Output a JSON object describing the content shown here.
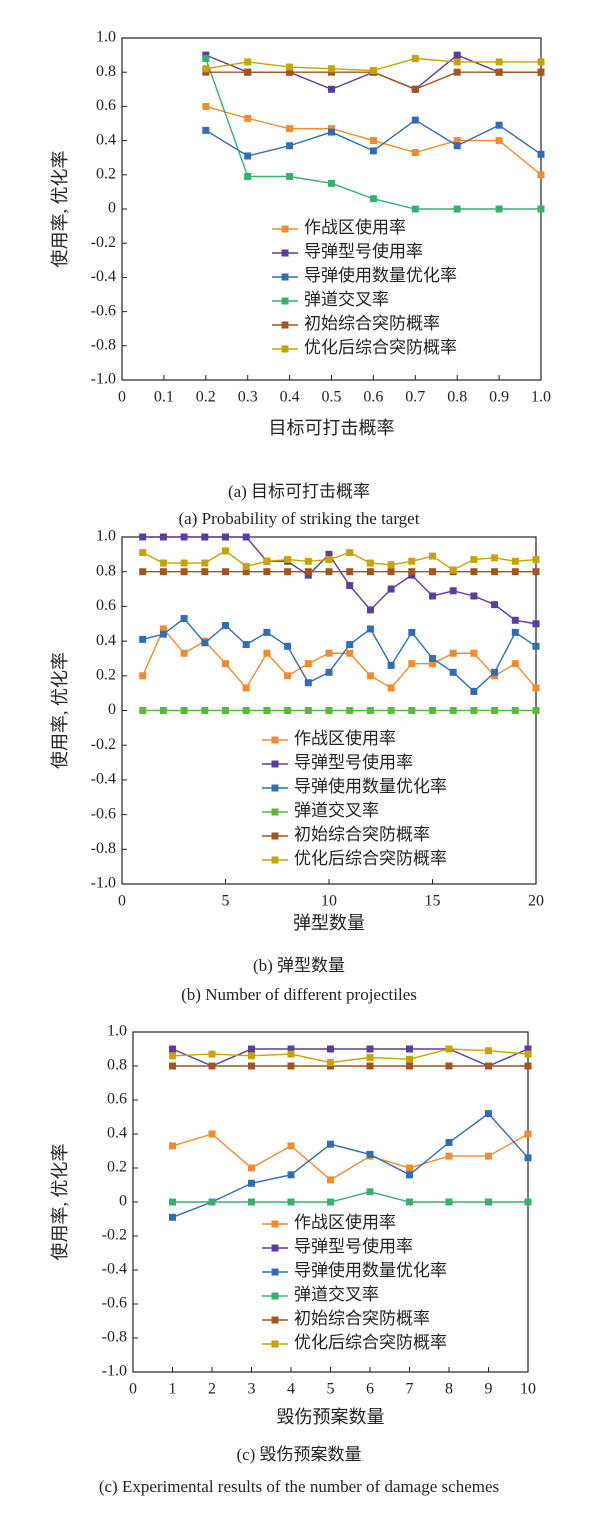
{
  "chart_data": [
    {
      "type": "line",
      "xlabel": "目标可打击概率",
      "ylabel": "使用率, 优化率",
      "caption": "(a) 目标可打击概率",
      "caption_en": "(a) Probability of striking the target",
      "x": [
        0.2,
        0.3,
        0.4,
        0.5,
        0.6,
        0.7,
        0.8,
        0.9,
        1.0
      ],
      "xlim": [
        0,
        1.0
      ],
      "xticks": [
        0,
        0.1,
        0.2,
        0.3,
        0.4,
        0.5,
        0.6,
        0.7,
        0.8,
        0.9,
        {
          "value": 1,
          "label": "1.0"
        }
      ],
      "ylim": [
        -1,
        1
      ],
      "yticks": [
        {
          "value": 1,
          "label": "1.0"
        },
        0.8,
        0.6,
        0.4,
        0.2,
        0,
        -0.2,
        -0.4,
        -0.6,
        -0.8,
        {
          "value": -1,
          "label": "-1.0"
        }
      ],
      "series": [
        {
          "name": "作战区使用率",
          "color": "#f28b2c",
          "values": [
            0.6,
            0.53,
            0.47,
            0.47,
            0.4,
            0.33,
            0.4,
            0.4,
            0.2
          ]
        },
        {
          "name": "导弹型号使用率",
          "color": "#5a3d9e",
          "values": [
            0.9,
            0.8,
            0.8,
            0.7,
            0.8,
            0.7,
            0.9,
            0.8,
            0.8
          ]
        },
        {
          "name": "导弹使用数量优化率",
          "color": "#2f6db5",
          "values": [
            0.46,
            0.31,
            0.37,
            0.45,
            0.34,
            0.52,
            0.37,
            0.49,
            0.32
          ]
        },
        {
          "name": "弹道交叉率",
          "color": "#36b06e",
          "values": [
            0.88,
            0.19,
            0.19,
            0.15,
            0.06,
            0,
            0,
            0,
            0
          ]
        },
        {
          "name": "初始综合突防概率",
          "color": "#a3541f",
          "values": [
            0.8,
            0.8,
            0.8,
            0.8,
            0.8,
            0.7,
            0.8,
            0.8,
            0.8
          ]
        },
        {
          "name": "优化后综合突防概率",
          "color": "#c7a300",
          "values": [
            0.82,
            0.86,
            0.83,
            0.82,
            0.81,
            0.88,
            0.86,
            0.86,
            0.86
          ]
        }
      ]
    },
    {
      "type": "line",
      "xlabel": "弹型数量",
      "ylabel": "使用率, 优化率",
      "caption": "(b) 弹型数量",
      "caption_en": "(b)  Number of different projectiles",
      "x": [
        1,
        2,
        3,
        4,
        5,
        6,
        7,
        8,
        9,
        10,
        11,
        12,
        13,
        14,
        15,
        16,
        17,
        18,
        19,
        20
      ],
      "xlim": [
        0,
        20
      ],
      "xticks": [
        0,
        5,
        10,
        15,
        20
      ],
      "ylim": [
        -1,
        1
      ],
      "yticks": [
        {
          "value": 1,
          "label": "1.0"
        },
        0.8,
        0.6,
        0.4,
        0.2,
        0,
        -0.2,
        -0.4,
        -0.6,
        -0.8,
        {
          "value": -1,
          "label": "-1.0"
        }
      ],
      "series": [
        {
          "name": "作战区使用率",
          "color": "#f28b2c",
          "values": [
            0.2,
            0.47,
            0.33,
            0.4,
            0.27,
            0.13,
            0.33,
            0.2,
            0.27,
            0.33,
            0.33,
            0.2,
            0.13,
            0.27,
            0.27,
            0.33,
            0.33,
            0.2,
            0.27,
            0.13
          ]
        },
        {
          "name": "导弹型号使用率",
          "color": "#5a3d9e",
          "values": [
            1,
            1,
            1,
            1,
            1,
            1,
            0.86,
            0.86,
            0.78,
            0.9,
            0.72,
            0.58,
            0.7,
            0.78,
            0.66,
            0.69,
            0.66,
            0.61,
            0.52,
            0.5
          ]
        },
        {
          "name": "导弹使用数量优化率",
          "color": "#2f6db5",
          "values": [
            0.41,
            0.44,
            0.53,
            0.39,
            0.49,
            0.38,
            0.45,
            0.37,
            0.16,
            0.22,
            0.38,
            0.47,
            0.26,
            0.45,
            0.3,
            0.22,
            0.11,
            0.22,
            0.45,
            0.37
          ]
        },
        {
          "name": "弹道交叉率",
          "color": "#5cb83c",
          "values": [
            0,
            0,
            0,
            0,
            0,
            0,
            0,
            0,
            0,
            0,
            0,
            0,
            0,
            0,
            0,
            0,
            0,
            0,
            0,
            0
          ]
        },
        {
          "name": "初始综合突防概率",
          "color": "#a3541f",
          "values": [
            0.8,
            0.8,
            0.8,
            0.8,
            0.8,
            0.8,
            0.8,
            0.8,
            0.8,
            0.8,
            0.8,
            0.8,
            0.8,
            0.8,
            0.8,
            0.8,
            0.8,
            0.8,
            0.8,
            0.8
          ]
        },
        {
          "name": "优化后综合突防概率",
          "color": "#c7a300",
          "values": [
            0.91,
            0.85,
            0.85,
            0.85,
            0.92,
            0.83,
            0.86,
            0.87,
            0.86,
            0.87,
            0.91,
            0.85,
            0.84,
            0.86,
            0.89,
            0.81,
            0.87,
            0.88,
            0.86,
            0.87
          ]
        }
      ]
    },
    {
      "type": "line",
      "xlabel": "毁伤预案数量",
      "ylabel": "使用率, 优化率",
      "caption": "(c) 毁伤预案数量",
      "caption_en": "(c)  Experimental results of the number of damage schemes",
      "x": [
        1,
        2,
        3,
        4,
        5,
        6,
        7,
        8,
        9,
        10
      ],
      "xlim": [
        0,
        10
      ],
      "xticks": [
        0,
        1,
        2,
        3,
        4,
        5,
        6,
        7,
        8,
        9,
        10
      ],
      "ylim": [
        -1,
        1
      ],
      "yticks": [
        {
          "value": 1,
          "label": "1.0"
        },
        0.8,
        0.6,
        0.4,
        0.2,
        0,
        -0.2,
        -0.4,
        -0.6,
        -0.8,
        {
          "value": -1,
          "label": "-1.0"
        }
      ],
      "series": [
        {
          "name": "作战区使用率",
          "color": "#f28b2c",
          "values": [
            0.33,
            0.4,
            0.2,
            0.33,
            0.13,
            0.27,
            0.2,
            0.27,
            0.27,
            0.4
          ]
        },
        {
          "name": "导弹型号使用率",
          "color": "#5a3d9e",
          "values": [
            0.9,
            0.8,
            0.9,
            0.9,
            0.9,
            0.9,
            0.9,
            0.9,
            0.8,
            0.9
          ]
        },
        {
          "name": "导弹使用数量优化率",
          "color": "#2f6db5",
          "values": [
            -0.09,
            0,
            0.11,
            0.16,
            0.34,
            0.28,
            0.16,
            0.35,
            0.52,
            0.26
          ]
        },
        {
          "name": "弹道交叉率",
          "color": "#36b06e",
          "values": [
            0,
            0,
            0,
            0,
            0,
            0.06,
            0,
            0,
            0,
            0
          ]
        },
        {
          "name": "初始综合突防概率",
          "color": "#a3541f",
          "values": [
            0.8,
            0.8,
            0.8,
            0.8,
            0.8,
            0.8,
            0.8,
            0.8,
            0.8,
            0.8
          ]
        },
        {
          "name": "优化后综合突防概率",
          "color": "#c7a300",
          "values": [
            0.86,
            0.87,
            0.86,
            0.87,
            0.82,
            0.85,
            0.84,
            0.9,
            0.89,
            0.87
          ]
        }
      ]
    }
  ]
}
